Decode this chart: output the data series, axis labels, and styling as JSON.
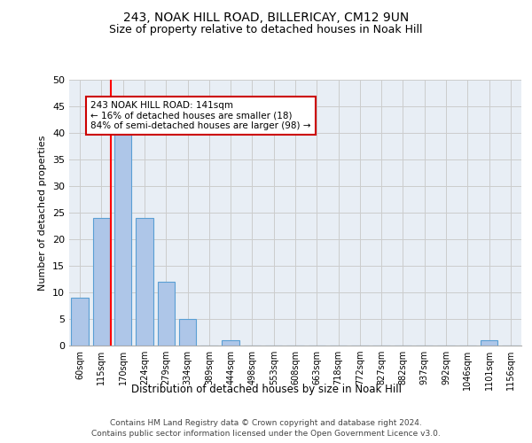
{
  "title1": "243, NOAK HILL ROAD, BILLERICAY, CM12 9UN",
  "title2": "Size of property relative to detached houses in Noak Hill",
  "xlabel": "Distribution of detached houses by size in Noak Hill",
  "ylabel": "Number of detached properties",
  "footer1": "Contains HM Land Registry data © Crown copyright and database right 2024.",
  "footer2": "Contains public sector information licensed under the Open Government Licence v3.0.",
  "bins": [
    "60sqm",
    "115sqm",
    "170sqm",
    "224sqm",
    "279sqm",
    "334sqm",
    "389sqm",
    "444sqm",
    "498sqm",
    "553sqm",
    "608sqm",
    "663sqm",
    "718sqm",
    "772sqm",
    "827sqm",
    "882sqm",
    "937sqm",
    "992sqm",
    "1046sqm",
    "1101sqm",
    "1156sqm"
  ],
  "values": [
    9,
    24,
    41,
    24,
    12,
    5,
    0,
    1,
    0,
    0,
    0,
    0,
    0,
    0,
    0,
    0,
    0,
    0,
    0,
    1,
    0
  ],
  "bar_color": "#aec6e8",
  "bar_edge_color": "#5a9fd4",
  "red_line_x": 1.45,
  "ylim": [
    0,
    50
  ],
  "yticks": [
    0,
    5,
    10,
    15,
    20,
    25,
    30,
    35,
    40,
    45,
    50
  ],
  "annotation_title": "243 NOAK HILL ROAD: 141sqm",
  "annotation_line1": "← 16% of detached houses are smaller (18)",
  "annotation_line2": "84% of semi-detached houses are larger (98) →",
  "annotation_box_color": "#ffffff",
  "annotation_box_edge": "#cc0000",
  "bg_color": "#e8eef5"
}
